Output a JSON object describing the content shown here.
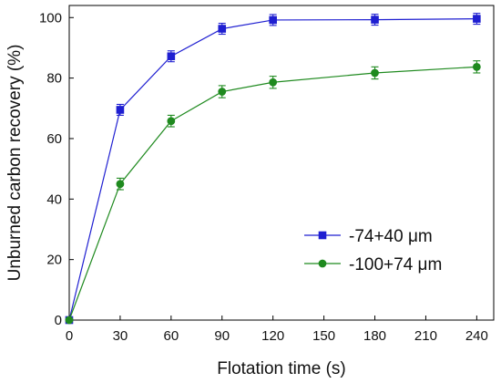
{
  "chart_data": {
    "type": "line",
    "title": "",
    "xlabel": "Flotation time (s)",
    "ylabel": "Unburned carbon recovery (%)",
    "xlim": [
      0,
      250
    ],
    "ylim": [
      0,
      104
    ],
    "xticks": [
      0,
      30,
      60,
      90,
      120,
      150,
      180,
      210,
      240
    ],
    "yticks": [
      0,
      20,
      40,
      60,
      80,
      100
    ],
    "grid": false,
    "legend_position": "bottom-right",
    "series": [
      {
        "name": "-74+40 μm",
        "color": "#1f1fd1",
        "marker": "square",
        "x": [
          0,
          30,
          60,
          90,
          120,
          180,
          240
        ],
        "y": [
          0,
          69.5,
          87.2,
          96.3,
          99.2,
          99.3,
          99.6
        ],
        "err": [
          0,
          1.8,
          1.8,
          1.8,
          1.8,
          1.8,
          1.8
        ]
      },
      {
        "name": "-100+74 μm",
        "color": "#1f8a1f",
        "marker": "circle",
        "x": [
          0,
          30,
          60,
          90,
          120,
          180,
          240
        ],
        "y": [
          0,
          45.0,
          65.8,
          75.5,
          78.6,
          81.7,
          83.7
        ],
        "err": [
          0,
          1.9,
          1.9,
          2.0,
          2.0,
          2.0,
          2.0
        ]
      }
    ]
  }
}
